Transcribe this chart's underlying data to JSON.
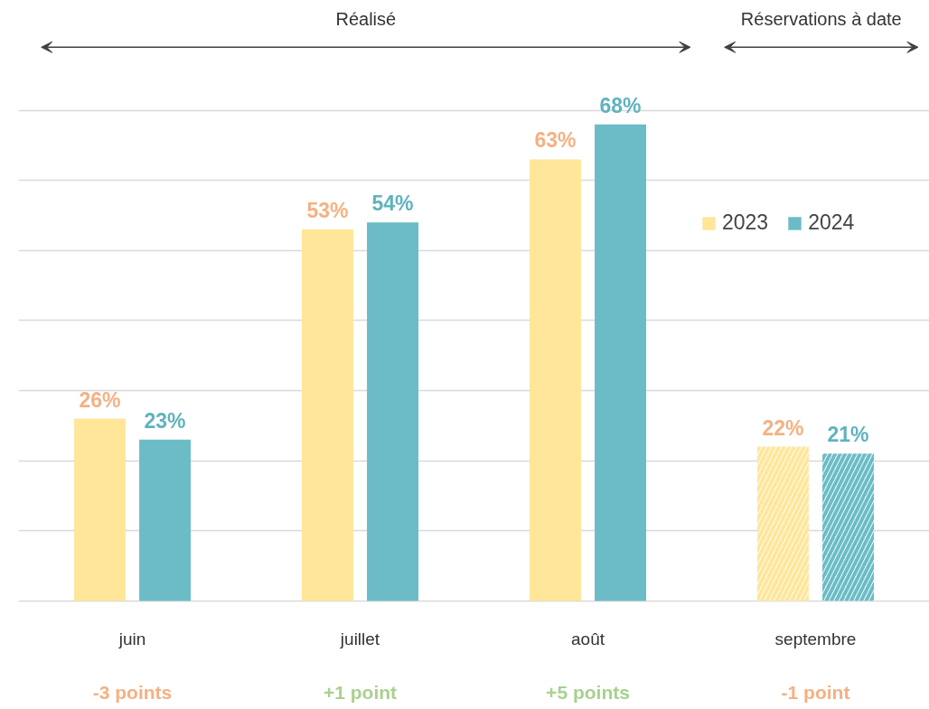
{
  "chart_data": {
    "type": "bar",
    "categories": [
      "juin",
      "juillet",
      "août",
      "septembre"
    ],
    "series": [
      {
        "name": "2023",
        "color": "#ffe699",
        "values": [
          26,
          53,
          63,
          22
        ],
        "value_labels": [
          "26%",
          "53%",
          "63%",
          "22%"
        ]
      },
      {
        "name": "2024",
        "color": "#6bbcc6",
        "values": [
          23,
          54,
          68,
          21
        ],
        "value_labels": [
          "23%",
          "54%",
          "68%",
          "21%"
        ]
      }
    ],
    "tick_labels": "x",
    "grid": "y",
    "legend": "top right",
    "annotations": [
      "Réalisé",
      "Réservations à date",
      "-3 points",
      "+1 point",
      "+5 points",
      "-1 point"
    ]
  }
}
